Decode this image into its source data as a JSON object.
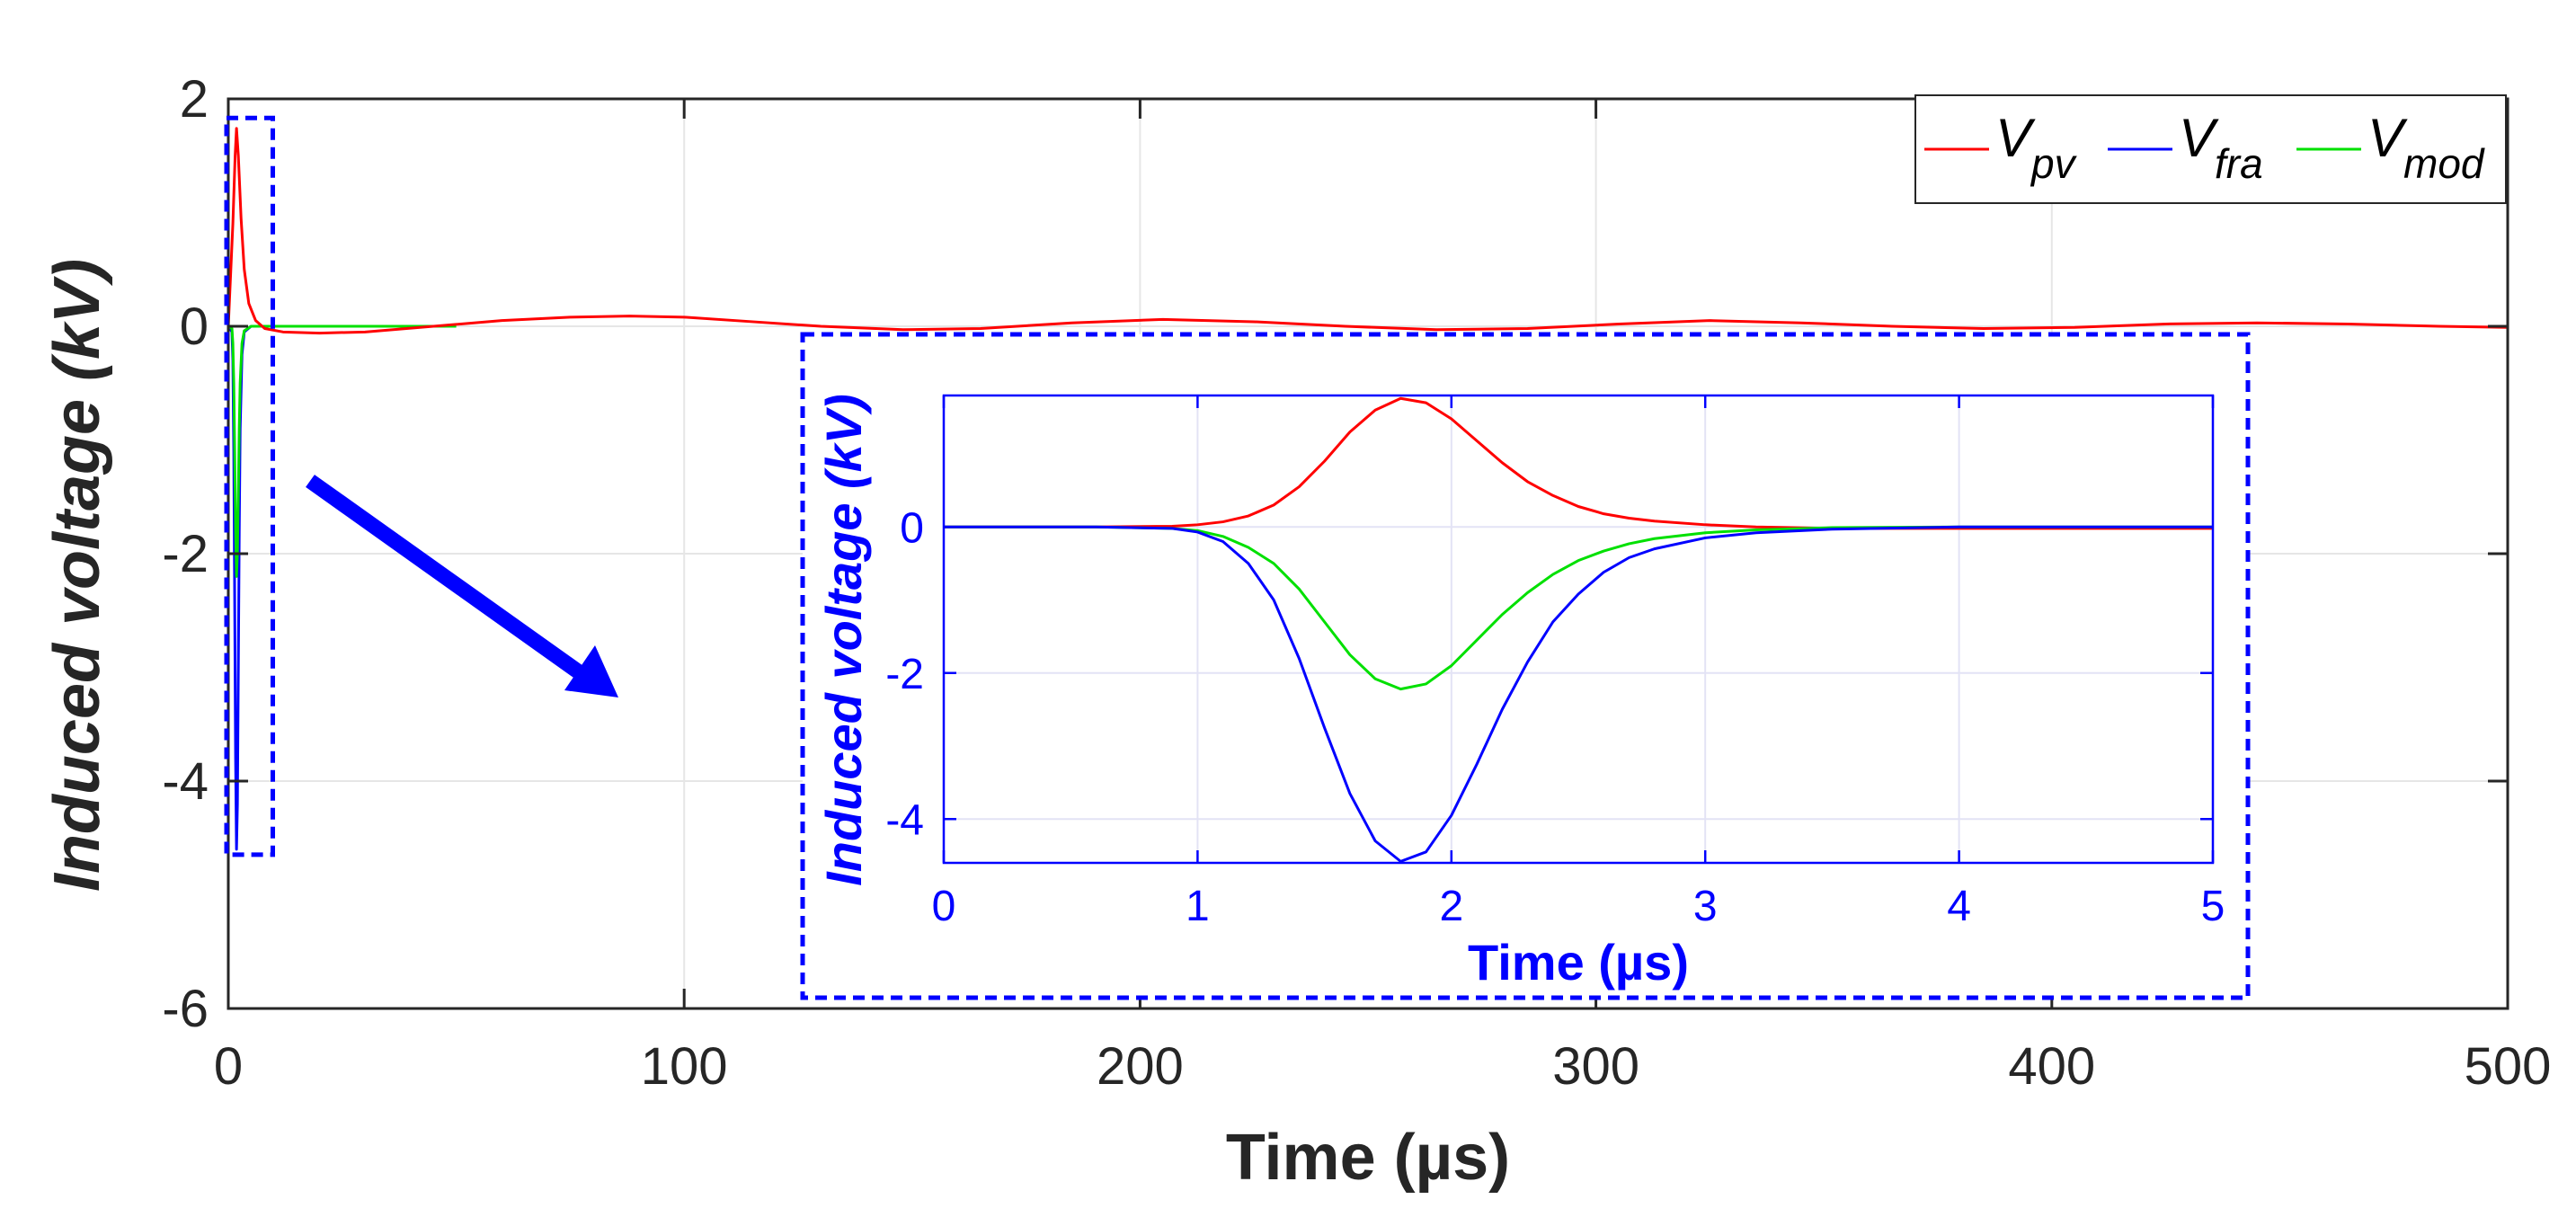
{
  "chart_data": [
    {
      "type": "line",
      "panel": "main",
      "xlabel": "Time (µs)",
      "ylabel": "Induced voltage (kV)",
      "xlim": [
        0,
        500
      ],
      "ylim": [
        -6,
        2
      ],
      "xticks": [
        0,
        100,
        200,
        300,
        400,
        500
      ],
      "yticks": [
        -6,
        -4,
        -2,
        0,
        2
      ],
      "grid": true,
      "legend_position": "top-right",
      "colors": {
        "V_pv": "#ff0000",
        "V_fra": "#0000ff",
        "V_mod": "#00e000",
        "zoom_box": "#0000ff",
        "arrow": "#0000ff"
      },
      "series": [
        {
          "name": "V_pv",
          "label_main": "V",
          "label_sub": "pv",
          "x": [
            0,
            1,
            1.5,
            1.8,
            2.2,
            2.8,
            3.5,
            4.5,
            6,
            8,
            12,
            20,
            30,
            45,
            60,
            75,
            88,
            100,
            115,
            130,
            148,
            165,
            185,
            205,
            225,
            245,
            265,
            285,
            305,
            325,
            345,
            365,
            385,
            405,
            425,
            445,
            465,
            485,
            500
          ],
          "y": [
            0,
            0.9,
            1.5,
            1.74,
            1.5,
            0.95,
            0.5,
            0.2,
            0.05,
            -0.02,
            -0.05,
            -0.06,
            -0.05,
            0.0,
            0.05,
            0.08,
            0.09,
            0.08,
            0.04,
            0.0,
            -0.03,
            -0.02,
            0.03,
            0.06,
            0.04,
            0.0,
            -0.03,
            -0.02,
            0.02,
            0.05,
            0.03,
            0.0,
            -0.02,
            -0.01,
            0.02,
            0.03,
            0.02,
            0.0,
            -0.01
          ]
        },
        {
          "name": "V_fra",
          "label_main": "V",
          "label_sub": "fra",
          "x": [
            0,
            0.8,
            1.0,
            1.2,
            1.4,
            1.6,
            1.8,
            2.0,
            2.2,
            2.4,
            2.6,
            3.0,
            3.5,
            5.0,
            10.0
          ],
          "y": [
            0,
            -0.05,
            -0.3,
            -1.1,
            -2.4,
            -3.8,
            -4.6,
            -4.2,
            -3.0,
            -1.8,
            -0.9,
            -0.25,
            -0.05,
            0.0,
            0.0
          ]
        },
        {
          "name": "V_mod",
          "label_main": "V",
          "label_sub": "mod",
          "x": [
            0,
            0.8,
            1.0,
            1.2,
            1.4,
            1.6,
            1.8,
            2.0,
            2.2,
            2.4,
            2.6,
            3.0,
            3.5,
            5.0,
            20.0,
            50.0
          ],
          "y": [
            0,
            -0.02,
            -0.15,
            -0.5,
            -1.1,
            -1.8,
            -2.2,
            -2.0,
            -1.5,
            -0.9,
            -0.5,
            -0.15,
            -0.04,
            0.0,
            0.0,
            0.0
          ]
        }
      ],
      "zoom_region": {
        "x": [
          0,
          7
        ],
        "y": [
          -4.6,
          1.8
        ]
      }
    },
    {
      "type": "line",
      "panel": "inset",
      "xlabel": "Time (µs)",
      "ylabel": "Induced voltage (kV)",
      "xlim": [
        0,
        5
      ],
      "ylim": [
        -4.6,
        1.8
      ],
      "xticks": [
        0,
        1,
        2,
        3,
        4,
        5
      ],
      "yticks": [
        -4,
        -2,
        0
      ],
      "grid": true,
      "series": [
        {
          "name": "V_pv",
          "x": [
            0,
            0.6,
            0.9,
            1.0,
            1.1,
            1.2,
            1.3,
            1.4,
            1.5,
            1.6,
            1.7,
            1.8,
            1.9,
            2.0,
            2.1,
            2.2,
            2.3,
            2.4,
            2.5,
            2.6,
            2.7,
            2.8,
            3.0,
            3.2,
            3.5,
            4.0,
            5.0
          ],
          "y": [
            0,
            0,
            0.01,
            0.03,
            0.07,
            0.15,
            0.3,
            0.55,
            0.9,
            1.3,
            1.6,
            1.76,
            1.7,
            1.48,
            1.18,
            0.88,
            0.62,
            0.43,
            0.28,
            0.18,
            0.12,
            0.08,
            0.03,
            0.0,
            -0.02,
            -0.02,
            -0.02
          ]
        },
        {
          "name": "V_fra",
          "x": [
            0,
            0.6,
            0.9,
            1.0,
            1.1,
            1.2,
            1.3,
            1.4,
            1.5,
            1.6,
            1.7,
            1.8,
            1.9,
            2.0,
            2.1,
            2.2,
            2.3,
            2.4,
            2.5,
            2.6,
            2.7,
            2.8,
            3.0,
            3.2,
            3.5,
            4.0,
            5.0
          ],
          "y": [
            0,
            0,
            -0.02,
            -0.07,
            -0.2,
            -0.5,
            -1.0,
            -1.8,
            -2.75,
            -3.65,
            -4.3,
            -4.58,
            -4.45,
            -3.95,
            -3.25,
            -2.5,
            -1.85,
            -1.3,
            -0.92,
            -0.62,
            -0.42,
            -0.3,
            -0.15,
            -0.08,
            -0.03,
            0.0,
            0.0
          ]
        },
        {
          "name": "V_mod",
          "x": [
            0,
            0.6,
            0.9,
            1.0,
            1.1,
            1.2,
            1.3,
            1.4,
            1.5,
            1.6,
            1.7,
            1.8,
            1.9,
            2.0,
            2.1,
            2.2,
            2.3,
            2.4,
            2.5,
            2.6,
            2.7,
            2.8,
            3.0,
            3.2,
            3.5,
            4.0,
            5.0
          ],
          "y": [
            0,
            0,
            -0.02,
            -0.05,
            -0.13,
            -0.28,
            -0.5,
            -0.85,
            -1.3,
            -1.75,
            -2.08,
            -2.22,
            -2.15,
            -1.9,
            -1.55,
            -1.2,
            -0.9,
            -0.65,
            -0.46,
            -0.33,
            -0.23,
            -0.16,
            -0.08,
            -0.04,
            -0.01,
            0.0,
            0.0
          ]
        }
      ]
    }
  ]
}
